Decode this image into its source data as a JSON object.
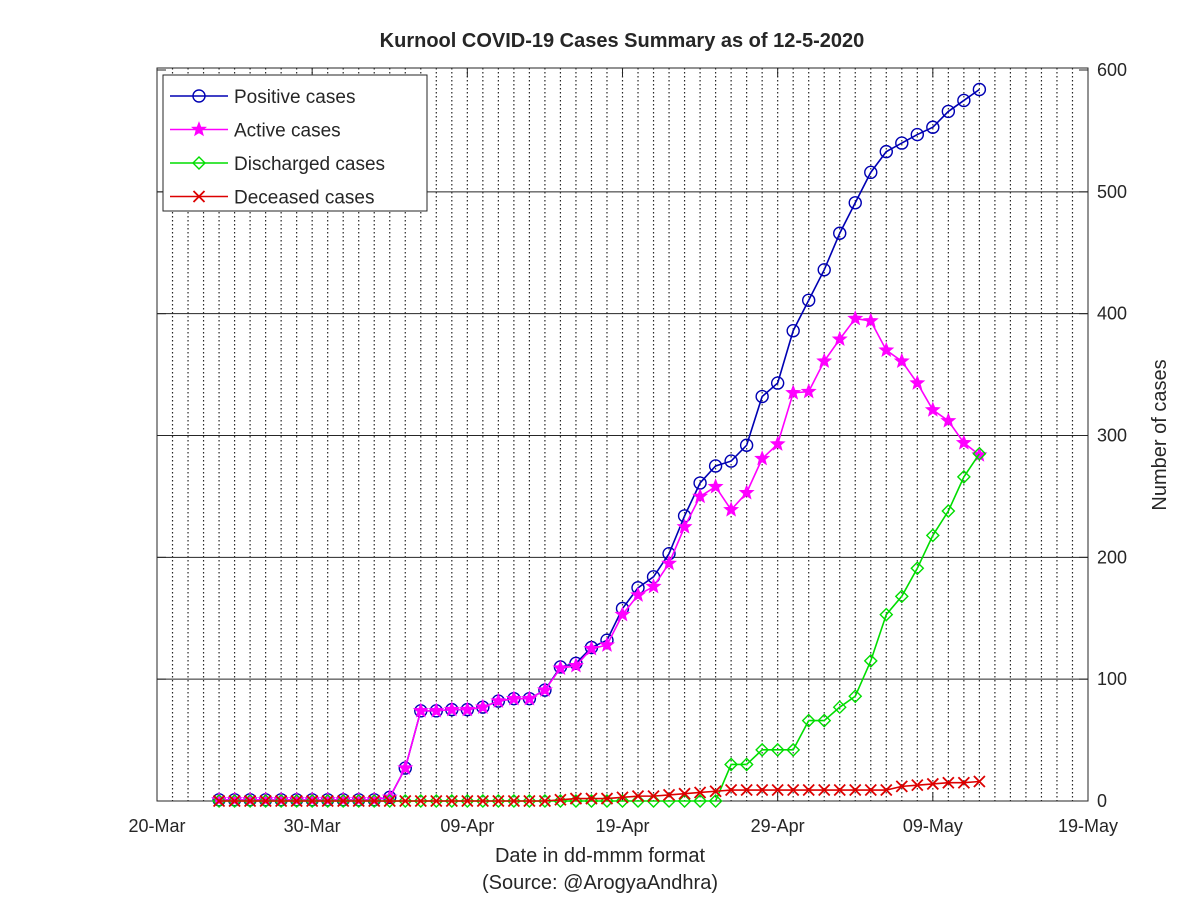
{
  "chart_data": {
    "type": "line",
    "title": "Kurnool COVID-19 Cases Summary as of 12-5-2020",
    "xlabel": "Date in dd-mmm format",
    "xlabel_note": "(Source: @ArogyaAndhra)",
    "ylabel": "Number of cases",
    "x_ticks": [
      "20-Mar",
      "30-Mar",
      "09-Apr",
      "19-Apr",
      "29-Apr",
      "09-May",
      "19-May"
    ],
    "x_range": [
      "2020-03-20",
      "2020-05-19"
    ],
    "y_ticks": [
      "0",
      "100",
      "200",
      "300",
      "400",
      "500",
      "600"
    ],
    "ylim": [
      0,
      600
    ],
    "y_axis_side": "right",
    "grid": "vertical dotted daily, horizontal solid",
    "legend_position": "top-left",
    "x": [
      "2020-03-24",
      "2020-03-25",
      "2020-03-26",
      "2020-03-27",
      "2020-03-28",
      "2020-03-29",
      "2020-03-30",
      "2020-03-31",
      "2020-04-01",
      "2020-04-02",
      "2020-04-03",
      "2020-04-04",
      "2020-04-05",
      "2020-04-06",
      "2020-04-07",
      "2020-04-08",
      "2020-04-09",
      "2020-04-10",
      "2020-04-11",
      "2020-04-12",
      "2020-04-13",
      "2020-04-14",
      "2020-04-15",
      "2020-04-16",
      "2020-04-17",
      "2020-04-18",
      "2020-04-19",
      "2020-04-20",
      "2020-04-21",
      "2020-04-22",
      "2020-04-23",
      "2020-04-24",
      "2020-04-25",
      "2020-04-26",
      "2020-04-27",
      "2020-04-28",
      "2020-04-29",
      "2020-04-30",
      "2020-05-01",
      "2020-05-02",
      "2020-05-03",
      "2020-05-04",
      "2020-05-05",
      "2020-05-06",
      "2020-05-07",
      "2020-05-08",
      "2020-05-09",
      "2020-05-10",
      "2020-05-11",
      "2020-05-12"
    ],
    "series": [
      {
        "name": "Positive cases",
        "color": "#0000b3",
        "marker": "circle",
        "values": [
          1,
          1,
          1,
          1,
          1,
          1,
          1,
          1,
          1,
          1,
          1,
          3,
          27,
          74,
          74,
          75,
          75,
          77,
          82,
          84,
          84,
          91,
          110,
          113,
          126,
          132,
          158,
          175,
          184,
          203,
          234,
          261,
          275,
          279,
          292,
          332,
          343,
          386,
          411,
          436,
          466,
          491,
          516,
          533,
          540,
          547,
          553,
          566,
          575,
          584
        ]
      },
      {
        "name": "Active cases",
        "color": "#ff00ff",
        "marker": "star",
        "values": [
          1,
          1,
          1,
          1,
          1,
          1,
          1,
          1,
          1,
          1,
          1,
          3,
          27,
          74,
          74,
          75,
          75,
          77,
          82,
          84,
          84,
          91,
          109,
          111,
          125,
          128,
          153,
          169,
          176,
          195,
          225,
          250,
          258,
          239,
          253,
          281,
          293,
          335,
          336,
          361,
          379,
          396,
          394,
          370,
          361,
          343,
          321,
          312,
          294,
          284
        ]
      },
      {
        "name": "Discharged cases",
        "color": "#00dd00",
        "marker": "diamond",
        "values": [
          0,
          0,
          0,
          0,
          0,
          0,
          0,
          0,
          0,
          0,
          0,
          0,
          0,
          0,
          0,
          0,
          0,
          0,
          0,
          0,
          0,
          0,
          0,
          0,
          0,
          0,
          0,
          0,
          0,
          0,
          0,
          0,
          0,
          30,
          30,
          42,
          42,
          42,
          66,
          66,
          77,
          86,
          115,
          153,
          168,
          191,
          218,
          238,
          266,
          285
        ]
      },
      {
        "name": "Deceased cases",
        "color": "#dd0000",
        "marker": "x",
        "values": [
          0,
          0,
          0,
          0,
          0,
          0,
          0,
          0,
          0,
          0,
          0,
          0,
          0,
          0,
          0,
          0,
          0,
          0,
          0,
          0,
          0,
          0,
          1,
          2,
          2,
          2,
          3,
          4,
          4,
          5,
          6,
          7,
          8,
          9,
          9,
          9,
          9,
          9,
          9,
          9,
          9,
          9,
          9,
          9,
          12,
          13,
          14,
          15,
          15,
          16
        ]
      }
    ]
  }
}
